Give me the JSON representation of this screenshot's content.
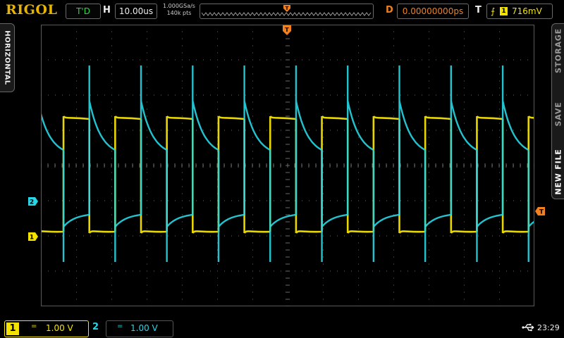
{
  "header": {
    "logo": "RIGOL",
    "trigger_status": "T'D",
    "horizontal_label": "H",
    "timebase": "10.00us",
    "sample_rate": "1.000GSa/s",
    "memory_depth": "140k pts",
    "delay_label": "D",
    "delay_value": "0.00000000ps",
    "trigger_label": "T",
    "trigger_edge": "⨍",
    "trigger_source": "1",
    "trigger_level": "716mV"
  },
  "side_menu": {
    "left_tab": "HORIZONTAL",
    "right_tabs": [
      "STORAGE",
      "SAVE",
      "NEW FILE"
    ]
  },
  "markers": {
    "ch1": "1",
    "ch2": "2",
    "trigger": "T"
  },
  "footer": {
    "ch1_number": "1",
    "ch1_coupling": "=",
    "ch1_scale": "1.00 V",
    "ch2_number": "2",
    "ch2_coupling": "=",
    "ch2_scale": "1.00 V",
    "clock": "23:29"
  },
  "colors": {
    "ch1": "#f4e200",
    "ch2": "#27d7e6",
    "trigger": "#f08020",
    "logo": "#e8b400"
  },
  "icons": {
    "usb": "usb-icon",
    "trigger_edge": "rising-edge-icon"
  }
}
